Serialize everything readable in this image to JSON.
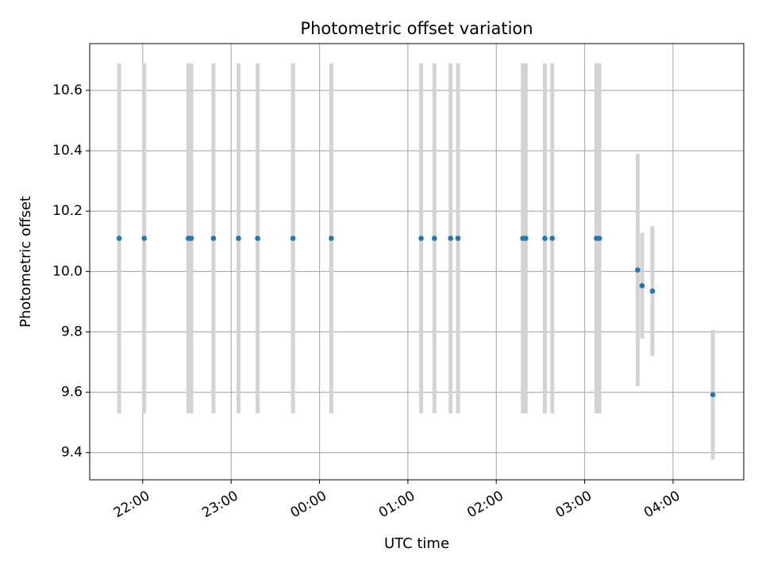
{
  "chart_data": {
    "type": "scatter",
    "title": "Photometric offset variation",
    "xlabel": "UTC time",
    "ylabel": "Photometric offset",
    "grid": true,
    "base_date": "2000-01-01",
    "xlim": [
      "2000-01-01T21:24:00",
      "2000-01-02T04:48:00"
    ],
    "ylim": [
      9.31,
      10.755
    ],
    "x_ticks": [
      {
        "t": "2000-01-01T22:00:00",
        "label": "22:00"
      },
      {
        "t": "2000-01-01T23:00:00",
        "label": "23:00"
      },
      {
        "t": "2000-01-02T00:00:00",
        "label": "00:00"
      },
      {
        "t": "2000-01-02T01:00:00",
        "label": "01:00"
      },
      {
        "t": "2000-01-02T02:00:00",
        "label": "02:00"
      },
      {
        "t": "2000-01-02T03:00:00",
        "label": "03:00"
      },
      {
        "t": "2000-01-02T04:00:00",
        "label": "04:00"
      }
    ],
    "y_ticks": [
      {
        "v": 9.4,
        "label": "9.4"
      },
      {
        "v": 9.6,
        "label": "9.6"
      },
      {
        "v": 9.8,
        "label": "9.8"
      },
      {
        "v": 10.0,
        "label": "10.0"
      },
      {
        "v": 10.2,
        "label": "10.2"
      },
      {
        "v": 10.4,
        "label": "10.4"
      },
      {
        "v": 10.6,
        "label": "10.6"
      }
    ],
    "marker_color": "#1f77b4",
    "errorbar_color": "#d3d3d3",
    "points": [
      {
        "t": "2000-01-01T21:44:00",
        "y": 10.11,
        "err": 0.58
      },
      {
        "t": "2000-01-01T22:01:00",
        "y": 10.11,
        "err": 0.58
      },
      {
        "t": "2000-01-01T22:31:00",
        "y": 10.11,
        "err": 0.58
      },
      {
        "t": "2000-01-01T22:33:00",
        "y": 10.11,
        "err": 0.58
      },
      {
        "t": "2000-01-01T22:48:00",
        "y": 10.11,
        "err": 0.58
      },
      {
        "t": "2000-01-01T23:05:00",
        "y": 10.11,
        "err": 0.58
      },
      {
        "t": "2000-01-01T23:18:00",
        "y": 10.11,
        "err": 0.58
      },
      {
        "t": "2000-01-01T23:42:00",
        "y": 10.11,
        "err": 0.58
      },
      {
        "t": "2000-01-02T00:08:00",
        "y": 10.11,
        "err": 0.58
      },
      {
        "t": "2000-01-02T01:09:00",
        "y": 10.11,
        "err": 0.58
      },
      {
        "t": "2000-01-02T01:18:00",
        "y": 10.11,
        "err": 0.58
      },
      {
        "t": "2000-01-02T01:29:00",
        "y": 10.11,
        "err": 0.58
      },
      {
        "t": "2000-01-02T01:34:00",
        "y": 10.11,
        "err": 0.58
      },
      {
        "t": "2000-01-02T02:18:00",
        "y": 10.11,
        "err": 0.58
      },
      {
        "t": "2000-01-02T02:20:00",
        "y": 10.11,
        "err": 0.58
      },
      {
        "t": "2000-01-02T02:33:00",
        "y": 10.11,
        "err": 0.58
      },
      {
        "t": "2000-01-02T02:38:00",
        "y": 10.11,
        "err": 0.58
      },
      {
        "t": "2000-01-02T03:08:00",
        "y": 10.11,
        "err": 0.58
      },
      {
        "t": "2000-01-02T03:10:00",
        "y": 10.11,
        "err": 0.58
      },
      {
        "t": "2000-01-02T03:36:00",
        "y": 10.005,
        "err": 0.385
      },
      {
        "t": "2000-01-02T03:39:00",
        "y": 9.953,
        "err": 0.175
      },
      {
        "t": "2000-01-02T03:46:00",
        "y": 9.935,
        "err": 0.215
      },
      {
        "t": "2000-01-02T04:27:00",
        "y": 9.592,
        "err": 0.215
      }
    ]
  }
}
